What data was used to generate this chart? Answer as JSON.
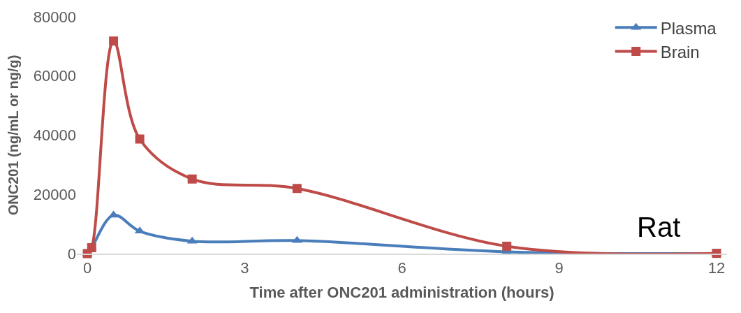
{
  "chart_data": {
    "type": "line",
    "xlabel": "Time after ONC201 administration (hours)",
    "ylabel": "ONC201 (ng/mL or ng/g)",
    "x": [
      0,
      0.083,
      0.5,
      1,
      2,
      4,
      8,
      12
    ],
    "series": [
      {
        "name": "Plasma",
        "color": "#4a7ebb",
        "marker": "triangle",
        "values": [
          0,
          2000,
          13000,
          7600,
          4200,
          4400,
          600,
          0
        ]
      },
      {
        "name": "Brain",
        "color": "#be4b48",
        "marker": "square",
        "values": [
          0,
          2000,
          71800,
          38700,
          25200,
          22000,
          2500,
          100
        ]
      }
    ],
    "xlim": [
      -0.2,
      12.2
    ],
    "xticks": [
      0,
      3,
      6,
      9,
      12
    ],
    "ylim": [
      0,
      80000
    ],
    "yticks": [
      0,
      20000,
      40000,
      60000,
      80000
    ],
    "legend": "top right",
    "annotations": [
      "Rat"
    ]
  }
}
